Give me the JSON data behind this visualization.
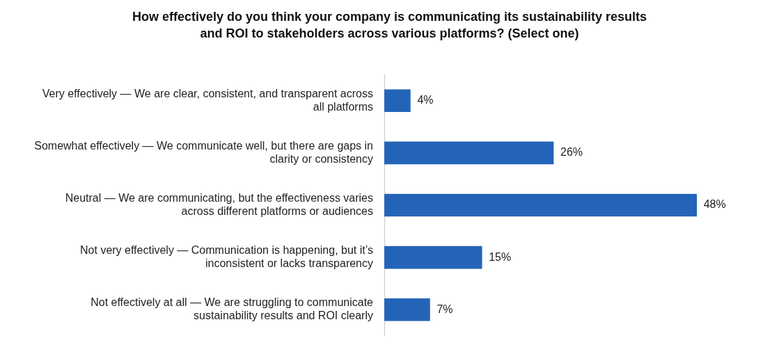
{
  "chart_data": {
    "type": "bar",
    "orientation": "horizontal",
    "tick_labels": "y",
    "title": "How effectively do you think your company is communicating its sustainability results and ROI to stakeholders across various platforms? (Select one)",
    "categories": [
      "Very effectively — We are clear, consistent, and transparent across all platforms",
      "Somewhat effectively — We communicate well, but there are gaps in clarity or consistency",
      "Neutral — We are communicating, but the effectiveness varies across different platforms or audiences",
      "Not very effectively — Communication is happening, but it’s inconsistent or lacks transparency",
      "Not effectively at all — We are struggling to communicate sustainability results and ROI clearly"
    ],
    "values": [
      4,
      26,
      48,
      15,
      7
    ],
    "value_labels": [
      "4%",
      "26%",
      "48%",
      "15%",
      "7%"
    ],
    "color": "#2464b8"
  }
}
